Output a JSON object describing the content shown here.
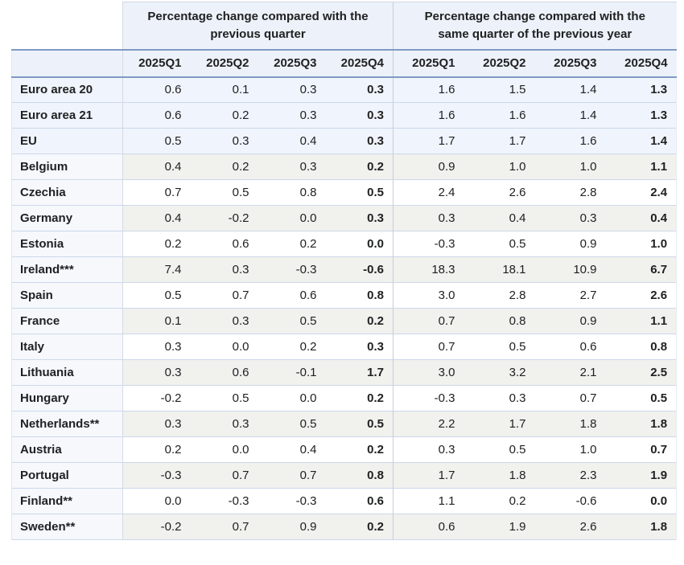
{
  "colors": {
    "header_background": "#edf2fa",
    "aggregate_row_background": "#f0f4fc",
    "label_column_background": "#f6f8fc",
    "alt_row_background": "#f1f1ee",
    "thick_border": "#8099c5",
    "thin_border": "#ccd8ea",
    "text": "#202122"
  },
  "chart_data": {
    "type": "table",
    "title": "",
    "corner_label": "",
    "group_headers": [
      "Percentage change compared with the previous quarter",
      "Percentage change compared with the same quarter of the previous year"
    ],
    "quarters": [
      "2025Q1",
      "2025Q2",
      "2025Q3",
      "2025Q4"
    ],
    "rows": [
      {
        "label": "Euro area 20",
        "type": "aggregate",
        "qoq": [
          "0.6",
          "0.1",
          "0.3",
          "0.3"
        ],
        "yoy": [
          "1.6",
          "1.5",
          "1.4",
          "1.3"
        ]
      },
      {
        "label": "Euro area 21",
        "type": "aggregate",
        "qoq": [
          "0.6",
          "0.2",
          "0.3",
          "0.3"
        ],
        "yoy": [
          "1.6",
          "1.6",
          "1.4",
          "1.3"
        ]
      },
      {
        "label": "EU",
        "type": "aggregate",
        "qoq": [
          "0.5",
          "0.3",
          "0.4",
          "0.3"
        ],
        "yoy": [
          "1.7",
          "1.7",
          "1.6",
          "1.4"
        ]
      },
      {
        "label": "Belgium",
        "type": "country",
        "qoq": [
          "0.4",
          "0.2",
          "0.3",
          "0.2"
        ],
        "yoy": [
          "0.9",
          "1.0",
          "1.0",
          "1.1"
        ]
      },
      {
        "label": "Czechia",
        "type": "country",
        "qoq": [
          "0.7",
          "0.5",
          "0.8",
          "0.5"
        ],
        "yoy": [
          "2.4",
          "2.6",
          "2.8",
          "2.4"
        ]
      },
      {
        "label": "Germany",
        "type": "country",
        "qoq": [
          "0.4",
          "-0.2",
          "0.0",
          "0.3"
        ],
        "yoy": [
          "0.3",
          "0.4",
          "0.3",
          "0.4"
        ]
      },
      {
        "label": "Estonia",
        "type": "country",
        "qoq": [
          "0.2",
          "0.6",
          "0.2",
          "0.0"
        ],
        "yoy": [
          "-0.3",
          "0.5",
          "0.9",
          "1.0"
        ]
      },
      {
        "label": "Ireland***",
        "type": "country",
        "qoq": [
          "7.4",
          "0.3",
          "-0.3",
          "-0.6"
        ],
        "yoy": [
          "18.3",
          "18.1",
          "10.9",
          "6.7"
        ]
      },
      {
        "label": "Spain",
        "type": "country",
        "qoq": [
          "0.5",
          "0.7",
          "0.6",
          "0.8"
        ],
        "yoy": [
          "3.0",
          "2.8",
          "2.7",
          "2.6"
        ]
      },
      {
        "label": "France",
        "type": "country",
        "qoq": [
          "0.1",
          "0.3",
          "0.5",
          "0.2"
        ],
        "yoy": [
          "0.7",
          "0.8",
          "0.9",
          "1.1"
        ]
      },
      {
        "label": "Italy",
        "type": "country",
        "qoq": [
          "0.3",
          "0.0",
          "0.2",
          "0.3"
        ],
        "yoy": [
          "0.7",
          "0.5",
          "0.6",
          "0.8"
        ]
      },
      {
        "label": "Lithuania",
        "type": "country",
        "qoq": [
          "0.3",
          "0.6",
          "-0.1",
          "1.7"
        ],
        "yoy": [
          "3.0",
          "3.2",
          "2.1",
          "2.5"
        ]
      },
      {
        "label": "Hungary",
        "type": "country",
        "qoq": [
          "-0.2",
          "0.5",
          "0.0",
          "0.2"
        ],
        "yoy": [
          "-0.3",
          "0.3",
          "0.7",
          "0.5"
        ]
      },
      {
        "label": "Netherlands**",
        "type": "country",
        "qoq": [
          "0.3",
          "0.3",
          "0.5",
          "0.5"
        ],
        "yoy": [
          "2.2",
          "1.7",
          "1.8",
          "1.8"
        ]
      },
      {
        "label": "Austria",
        "type": "country",
        "qoq": [
          "0.2",
          "0.0",
          "0.4",
          "0.2"
        ],
        "yoy": [
          "0.3",
          "0.5",
          "1.0",
          "0.7"
        ]
      },
      {
        "label": "Portugal",
        "type": "country",
        "qoq": [
          "-0.3",
          "0.7",
          "0.7",
          "0.8"
        ],
        "yoy": [
          "1.7",
          "1.8",
          "2.3",
          "1.9"
        ]
      },
      {
        "label": "Finland**",
        "type": "country",
        "qoq": [
          "0.0",
          "-0.3",
          "-0.3",
          "0.6"
        ],
        "yoy": [
          "1.1",
          "0.2",
          "-0.6",
          "0.0"
        ]
      },
      {
        "label": "Sweden**",
        "type": "country",
        "qoq": [
          "-0.2",
          "0.7",
          "0.9",
          "0.2"
        ],
        "yoy": [
          "0.6",
          "1.9",
          "2.6",
          "1.8"
        ]
      }
    ]
  }
}
